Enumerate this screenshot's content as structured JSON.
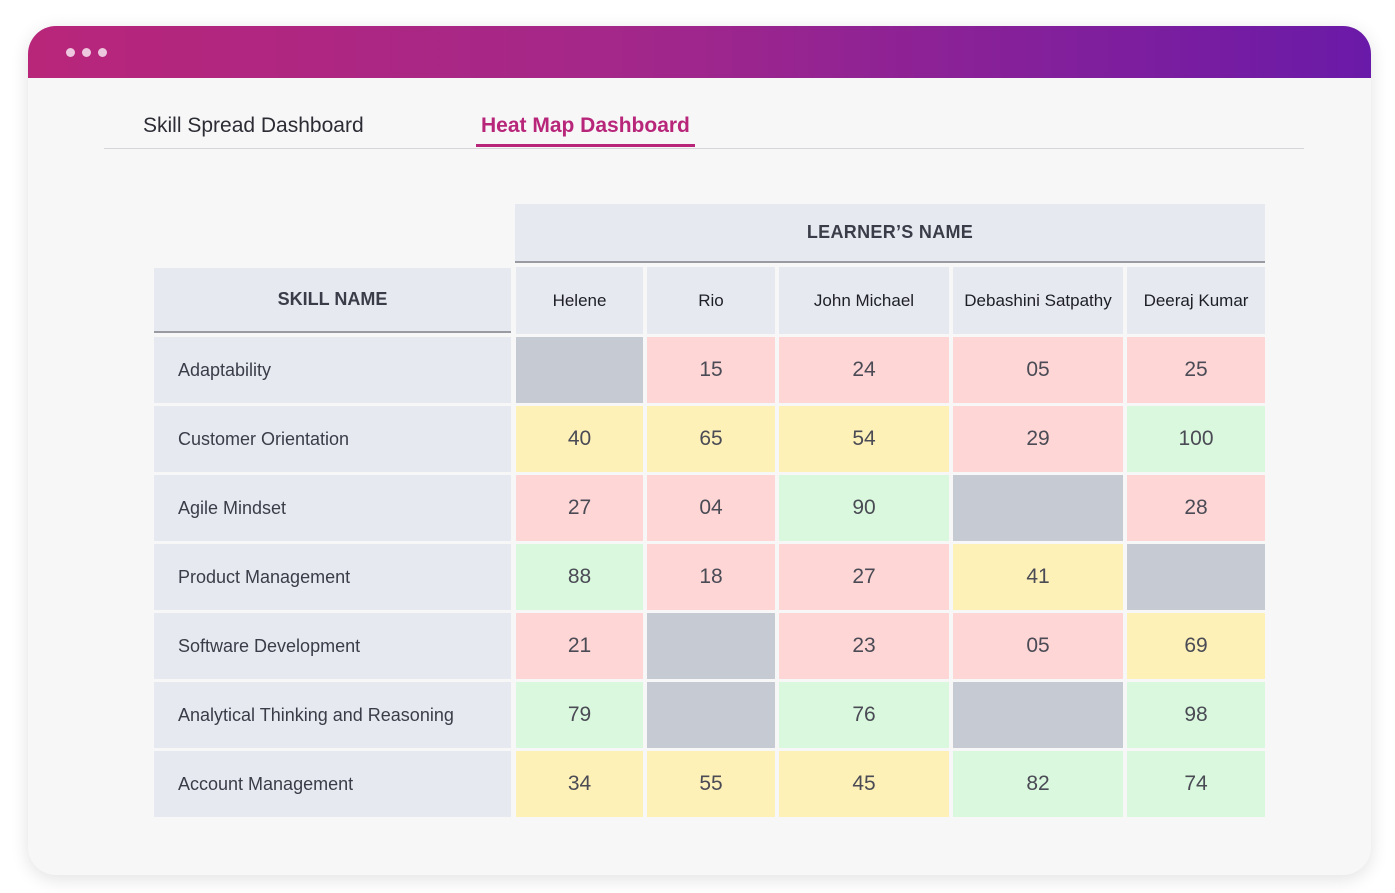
{
  "tabs": [
    "Skill Spread Dashboard",
    "Heat Map Dashboard"
  ],
  "active_tab": 1,
  "table": {
    "learner_header": "LEARNER’S NAME",
    "skill_header": "SKILL NAME",
    "learners": [
      "Helene",
      "Rio",
      "John Michael",
      "Debashini Satpathy",
      "Deeraj Kumar"
    ],
    "rows": [
      {
        "skill": "Adaptability",
        "values": [
          "",
          "15",
          "24",
          "05",
          "25"
        ]
      },
      {
        "skill": "Customer Orientation",
        "values": [
          "40",
          "65",
          "54",
          "29",
          "100"
        ]
      },
      {
        "skill": "Agile Mindset",
        "values": [
          "27",
          "04",
          "90",
          "",
          "28"
        ]
      },
      {
        "skill": "Product Management",
        "values": [
          "88",
          "18",
          "27",
          "41",
          ""
        ]
      },
      {
        "skill": "Software Development",
        "values": [
          "21",
          "",
          "23",
          "05",
          "69"
        ]
      },
      {
        "skill": "Analytical Thinking and Reasoning",
        "values": [
          "79",
          "",
          "76",
          "",
          "98"
        ]
      },
      {
        "skill": "Account Management",
        "values": [
          "34",
          "55",
          "45",
          "82",
          "74"
        ]
      }
    ]
  },
  "colors": {
    "low": "#fed6d6",
    "mid": "#fef1b8",
    "high": "#daf8dd",
    "empty": "#c5cad3",
    "accent": "#b8267a"
  }
}
